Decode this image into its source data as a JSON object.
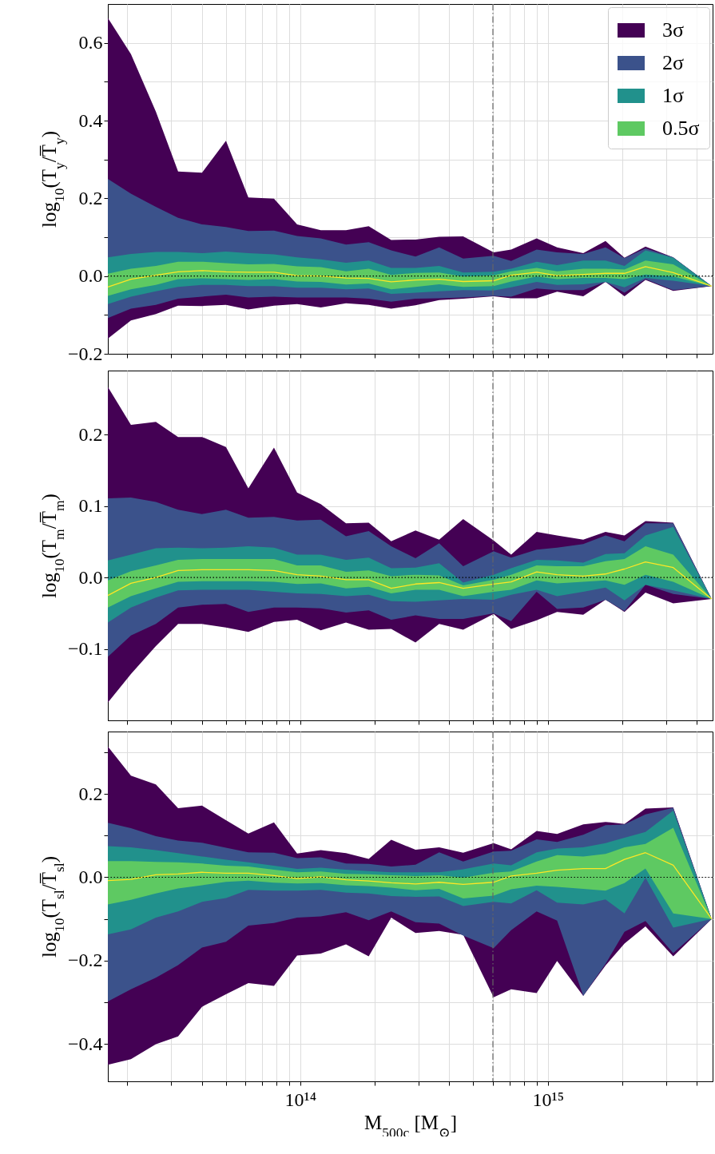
{
  "chart_data": [
    {
      "type": "area",
      "ylabel": "log$_{10}$(T$_{y}$/T̅$_{y}$)",
      "log": "x",
      "grid": true,
      "legend": "top right",
      "tick_labels": "y",
      "xlim": [
        16700000000000.0,
        4630000000000000.0
      ],
      "xticks": [
        {
          "value": 20000000000000.0,
          "label": null
        },
        {
          "value": 30000000000000.0,
          "label": null
        },
        {
          "value": 40000000000000.0,
          "label": null
        },
        {
          "value": 50000000000000.0,
          "label": null
        },
        {
          "value": 60000000000000.0,
          "label": null
        },
        {
          "value": 70000000000000.0,
          "label": null
        },
        {
          "value": 80000000000000.0,
          "label": null
        },
        {
          "value": 90000000000000.0,
          "label": null
        },
        {
          "value": 100000000000000.0,
          "label": null
        },
        {
          "value": 200000000000000.0,
          "label": null
        },
        {
          "value": 300000000000000.0,
          "label": null
        },
        {
          "value": 400000000000000.0,
          "label": null
        },
        {
          "value": 500000000000000.0,
          "label": null
        },
        {
          "value": 600000000000000.0,
          "label": null
        },
        {
          "value": 700000000000000.0,
          "label": null
        },
        {
          "value": 800000000000000.0,
          "label": null
        },
        {
          "value": 900000000000000.0,
          "label": null
        },
        {
          "value": 1000000000000000.0,
          "label": null
        },
        {
          "value": 2000000000000000.0,
          "label": null
        },
        {
          "value": 3000000000000000.0,
          "label": null
        },
        {
          "value": 4000000000000000.0,
          "label": null
        }
      ],
      "ylim": [
        -0.2,
        0.7
      ],
      "yticks": [
        {
          "value": -0.2,
          "label": "−0.2"
        },
        {
          "value": -0.1,
          "label": null
        },
        {
          "value": 0,
          "label": "0.0"
        },
        {
          "value": 0.1,
          "label": null
        },
        0.2,
        {
          "value": 0.3,
          "label": null
        },
        0.4,
        {
          "value": 0.5,
          "label": null
        },
        0.6
      ],
      "x": [
        16700000000000.0,
        20700000000000.0,
        26100000000000.0,
        32100000000000.0,
        40100000000000.0,
        50100000000000.0,
        61700000000000.0,
        78300000000000.0,
        97100000000000.0,
        121000000000000.0,
        153000000000000.0,
        189000000000000.0,
        233000000000000.0,
        292000000000000.0,
        364000000000000.0,
        455000000000000.0,
        604000000000000.0,
        711000000000000.0,
        901000000000000.0,
        1090000000000000.0,
        1390000000000000.0,
        1710000000000000.0,
        2040000000000000.0,
        2480000000000000.0,
        3210000000000000.0,
        4590000000000000.0
      ],
      "series": [
        {
          "name": "3σ",
          "color": "#440154",
          "values": [
            null,
            null,
            null,
            null,
            null,
            null,
            null,
            null,
            null,
            null,
            null,
            null,
            null,
            null,
            null,
            null,
            null,
            null,
            null,
            null,
            null,
            null,
            null,
            null,
            null,
            null
          ],
          "upper": [
            0.664,
            0.571,
            0.423,
            0.269,
            0.266,
            0.348,
            0.202,
            0.199,
            0.133,
            0.118,
            0.118,
            0.128,
            0.093,
            0.094,
            0.101,
            0.102,
            0.061,
            0.068,
            0.097,
            0.074,
            0.059,
            0.09,
            0.047,
            0.076,
            0.048,
            -0.026
          ],
          "lower": [
            -0.161,
            -0.114,
            -0.098,
            -0.076,
            -0.077,
            -0.074,
            -0.086,
            -0.076,
            -0.072,
            -0.081,
            -0.07,
            -0.074,
            -0.084,
            -0.075,
            -0.062,
            -0.058,
            -0.052,
            -0.057,
            -0.057,
            -0.04,
            -0.052,
            -0.015,
            -0.052,
            -0.01,
            -0.038,
            -0.026
          ]
        },
        {
          "name": "2σ",
          "color": "#3b528b",
          "values": [
            null,
            null,
            null,
            null,
            null,
            null,
            null,
            null,
            null,
            null,
            null,
            null,
            null,
            null,
            null,
            null,
            null,
            null,
            null,
            null,
            null,
            null,
            null,
            null,
            null,
            null
          ],
          "upper": [
            0.25,
            0.212,
            0.178,
            0.15,
            0.133,
            0.126,
            0.116,
            0.117,
            0.103,
            0.097,
            0.081,
            0.087,
            0.066,
            0.05,
            0.074,
            0.045,
            0.052,
            0.039,
            0.068,
            0.061,
            0.057,
            0.074,
            0.046,
            0.071,
            0.048,
            -0.026
          ],
          "lower": [
            -0.108,
            -0.084,
            -0.074,
            -0.058,
            -0.053,
            -0.048,
            -0.055,
            -0.053,
            -0.055,
            -0.055,
            -0.055,
            -0.058,
            -0.066,
            -0.058,
            -0.057,
            -0.055,
            -0.051,
            -0.053,
            -0.032,
            -0.036,
            -0.036,
            -0.015,
            -0.043,
            -0.008,
            -0.036,
            -0.026
          ]
        },
        {
          "name": "1σ",
          "color": "#21918c",
          "values": [
            null,
            null,
            null,
            null,
            null,
            null,
            null,
            null,
            null,
            null,
            null,
            null,
            null,
            null,
            null,
            null,
            null,
            null,
            null,
            null,
            null,
            null,
            null,
            null,
            null,
            null
          ],
          "upper": [
            0.048,
            0.057,
            0.062,
            0.062,
            0.059,
            0.063,
            0.059,
            0.056,
            0.048,
            0.043,
            0.034,
            0.04,
            0.021,
            0.021,
            0.026,
            0.009,
            0.011,
            0.019,
            0.037,
            0.028,
            0.04,
            0.04,
            0.026,
            0.066,
            0.047,
            -0.026
          ],
          "lower": [
            -0.072,
            -0.053,
            -0.039,
            -0.028,
            -0.023,
            -0.023,
            -0.026,
            -0.026,
            -0.03,
            -0.03,
            -0.034,
            -0.032,
            -0.046,
            -0.043,
            -0.039,
            -0.036,
            -0.037,
            -0.029,
            -0.015,
            -0.023,
            -0.021,
            -0.015,
            -0.029,
            -0.005,
            -0.012,
            -0.026
          ]
        },
        {
          "name": "0.5σ",
          "color": "#5ec962",
          "values": [
            null,
            null,
            null,
            null,
            null,
            null,
            null,
            null,
            null,
            null,
            null,
            null,
            null,
            null,
            null,
            null,
            null,
            null,
            null,
            null,
            null,
            null,
            null,
            null,
            null,
            null
          ],
          "upper": [
            0.006,
            0.019,
            0.026,
            0.037,
            0.037,
            0.033,
            0.03,
            0.031,
            0.025,
            0.023,
            0.012,
            0.019,
            0.003,
            0.008,
            0.009,
            -0.001,
            0.002,
            0.012,
            0.021,
            0.012,
            0.019,
            0.019,
            0.017,
            0.04,
            0.03,
            -0.026
          ],
          "lower": [
            -0.051,
            -0.034,
            -0.023,
            -0.008,
            -0.006,
            -0.008,
            -0.01,
            -0.008,
            -0.014,
            -0.015,
            -0.022,
            -0.019,
            -0.034,
            -0.028,
            -0.021,
            -0.028,
            -0.026,
            -0.014,
            -0.001,
            -0.008,
            -0.005,
            -0.005,
            -0.008,
            0.004,
            -0.001,
            -0.026
          ]
        },
        {
          "type": "line",
          "color": "#fde725",
          "values": [
            -0.028,
            -0.008,
            0.002,
            0.011,
            0.014,
            0.011,
            0.01,
            0.01,
            0.001,
            0.0,
            -0.005,
            -0.006,
            -0.015,
            -0.01,
            -0.008,
            -0.014,
            -0.012,
            0.002,
            0.01,
            0.001,
            0.004,
            0.007,
            0.007,
            0.024,
            0.009,
            -0.026
          ]
        }
      ],
      "ref_lines": [
        {
          "axis": "y",
          "value": 0,
          "color": "#000000",
          "line_style": "dotted"
        },
        {
          "axis": "x",
          "value": 600000000000000.0,
          "color": "#666666",
          "line_style": "dashdot"
        }
      ]
    },
    {
      "type": "area",
      "ylabel": "log$_{10}$(T$_{m}$/T̅$_{m}$)",
      "log": "x",
      "grid": true,
      "tick_labels": "y",
      "xlim": [
        16700000000000.0,
        4630000000000000.0
      ],
      "xticks": [
        {
          "value": 20000000000000.0,
          "label": null
        },
        {
          "value": 30000000000000.0,
          "label": null
        },
        {
          "value": 40000000000000.0,
          "label": null
        },
        {
          "value": 50000000000000.0,
          "label": null
        },
        {
          "value": 60000000000000.0,
          "label": null
        },
        {
          "value": 70000000000000.0,
          "label": null
        },
        {
          "value": 80000000000000.0,
          "label": null
        },
        {
          "value": 90000000000000.0,
          "label": null
        },
        {
          "value": 100000000000000.0,
          "label": null
        },
        {
          "value": 200000000000000.0,
          "label": null
        },
        {
          "value": 300000000000000.0,
          "label": null
        },
        {
          "value": 400000000000000.0,
          "label": null
        },
        {
          "value": 500000000000000.0,
          "label": null
        },
        {
          "value": 600000000000000.0,
          "label": null
        },
        {
          "value": 700000000000000.0,
          "label": null
        },
        {
          "value": 800000000000000.0,
          "label": null
        },
        {
          "value": 900000000000000.0,
          "label": null
        },
        {
          "value": 1000000000000000.0,
          "label": null
        },
        {
          "value": 2000000000000000.0,
          "label": null
        },
        {
          "value": 3000000000000000.0,
          "label": null
        },
        {
          "value": 4000000000000000.0,
          "label": null
        }
      ],
      "ylim": [
        -0.2,
        0.29
      ],
      "yticks": [
        {
          "value": -0.1,
          "label": "−0.1"
        },
        {
          "value": 0,
          "label": "0.0"
        },
        0.1,
        0.2
      ],
      "x": [
        16700000000000.0,
        20700000000000.0,
        26100000000000.0,
        32100000000000.0,
        40100000000000.0,
        50100000000000.0,
        61700000000000.0,
        78300000000000.0,
        97100000000000.0,
        121000000000000.0,
        153000000000000.0,
        189000000000000.0,
        233000000000000.0,
        292000000000000.0,
        364000000000000.0,
        455000000000000.0,
        604000000000000.0,
        711000000000000.0,
        901000000000000.0,
        1090000000000000.0,
        1390000000000000.0,
        1710000000000000.0,
        2040000000000000.0,
        2480000000000000.0,
        3210000000000000.0,
        4590000000000000.0
      ],
      "series": [
        {
          "color": "#440154",
          "values": [
            null,
            null,
            null,
            null,
            null,
            null,
            null,
            null,
            null,
            null,
            null,
            null,
            null,
            null,
            null,
            null,
            null,
            null,
            null,
            null,
            null,
            null,
            null,
            null,
            null,
            null
          ],
          "upper": [
            0.267,
            0.214,
            0.218,
            0.197,
            0.197,
            0.183,
            0.125,
            0.182,
            0.119,
            0.103,
            0.076,
            0.077,
            0.051,
            0.066,
            0.053,
            0.082,
            0.052,
            0.032,
            0.064,
            0.059,
            0.053,
            0.064,
            0.059,
            0.079,
            0.077,
            -0.03
          ],
          "lower": [
            -0.175,
            -0.135,
            -0.096,
            -0.065,
            -0.065,
            -0.07,
            -0.076,
            -0.062,
            -0.059,
            -0.074,
            -0.063,
            -0.073,
            -0.072,
            -0.091,
            -0.065,
            -0.073,
            -0.051,
            -0.072,
            -0.06,
            -0.048,
            -0.052,
            -0.031,
            -0.048,
            -0.021,
            -0.036,
            -0.03
          ]
        },
        {
          "color": "#3b528b",
          "values": [
            null,
            null,
            null,
            null,
            null,
            null,
            null,
            null,
            null,
            null,
            null,
            null,
            null,
            null,
            null,
            null,
            null,
            null,
            null,
            null,
            null,
            null,
            null,
            null,
            null,
            null
          ],
          "upper": [
            0.111,
            0.112,
            0.106,
            0.095,
            0.089,
            0.095,
            0.084,
            0.085,
            0.08,
            0.081,
            0.058,
            0.065,
            0.044,
            0.027,
            0.048,
            0.016,
            0.037,
            0.028,
            0.039,
            0.042,
            0.047,
            0.059,
            0.051,
            0.076,
            0.076,
            -0.03
          ],
          "lower": [
            -0.111,
            -0.081,
            -0.065,
            -0.042,
            -0.038,
            -0.037,
            -0.048,
            -0.042,
            -0.042,
            -0.043,
            -0.049,
            -0.046,
            -0.059,
            -0.053,
            -0.058,
            -0.058,
            -0.05,
            -0.061,
            -0.02,
            -0.044,
            -0.042,
            -0.031,
            -0.047,
            -0.01,
            -0.023,
            -0.03
          ]
        },
        {
          "color": "#21918c",
          "values": [
            null,
            null,
            null,
            null,
            null,
            null,
            null,
            null,
            null,
            null,
            null,
            null,
            null,
            null,
            null,
            null,
            null,
            null,
            null,
            null,
            null,
            null,
            null,
            null,
            null,
            null
          ],
          "upper": [
            0.024,
            0.032,
            0.041,
            0.042,
            0.041,
            0.042,
            0.044,
            0.042,
            0.032,
            0.032,
            0.025,
            0.028,
            0.013,
            0.014,
            0.02,
            -0.007,
            0.004,
            0.013,
            0.025,
            0.024,
            0.021,
            0.033,
            0.034,
            0.059,
            0.071,
            -0.03
          ],
          "lower": [
            -0.063,
            -0.042,
            -0.028,
            -0.018,
            -0.017,
            -0.017,
            -0.017,
            -0.02,
            -0.022,
            -0.023,
            -0.026,
            -0.024,
            -0.033,
            -0.034,
            -0.032,
            -0.03,
            -0.031,
            -0.024,
            -0.017,
            -0.026,
            -0.02,
            -0.014,
            -0.032,
            -0.01,
            -0.018,
            -0.03
          ]
        },
        {
          "color": "#5ec962",
          "values": [
            null,
            null,
            null,
            null,
            null,
            null,
            null,
            null,
            null,
            null,
            null,
            null,
            null,
            null,
            null,
            null,
            null,
            null,
            null,
            null,
            null,
            null,
            null,
            null,
            null,
            null
          ],
          "upper": [
            -0.004,
            0.009,
            0.017,
            0.025,
            0.026,
            0.026,
            0.026,
            0.026,
            0.017,
            0.017,
            0.008,
            0.01,
            0.002,
            0.004,
            0.003,
            -0.011,
            -0.003,
            0.004,
            0.017,
            0.016,
            0.016,
            0.023,
            0.026,
            0.044,
            0.032,
            -0.03
          ],
          "lower": [
            -0.042,
            -0.026,
            -0.015,
            -0.006,
            -0.005,
            -0.005,
            -0.005,
            -0.006,
            -0.009,
            -0.008,
            -0.015,
            -0.013,
            -0.022,
            -0.017,
            -0.017,
            -0.026,
            -0.02,
            -0.017,
            -0.004,
            -0.008,
            -0.006,
            -0.004,
            -0.01,
            0.004,
            -0.006,
            -0.03
          ]
        },
        {
          "type": "line",
          "color": "#fde725",
          "values": [
            -0.025,
            -0.008,
            0.0,
            0.01,
            0.011,
            0.011,
            0.011,
            0.01,
            0.004,
            0.002,
            -0.003,
            -0.003,
            -0.015,
            -0.009,
            -0.007,
            -0.015,
            -0.009,
            -0.006,
            0.008,
            0.004,
            0.002,
            0.005,
            0.012,
            0.022,
            0.014,
            -0.03
          ]
        }
      ],
      "ref_lines": [
        {
          "axis": "y",
          "value": 0,
          "color": "#000000",
          "line_style": "dotted"
        },
        {
          "axis": "x",
          "value": 600000000000000.0,
          "color": "#666666",
          "line_style": "dashdot"
        }
      ]
    },
    {
      "type": "area",
      "xlabel": "M$_{500c}$ [M$_{⊙}$]",
      "ylabel": "log$_{10}$(T$_{sl}$/T̅$_{sl}$)",
      "log": "x",
      "grid": true,
      "xlim": [
        16700000000000.0,
        4630000000000000.0
      ],
      "xticks": [
        {
          "value": 20000000000000.0,
          "label": null
        },
        {
          "value": 30000000000000.0,
          "label": null
        },
        {
          "value": 40000000000000.0,
          "label": null
        },
        {
          "value": 50000000000000.0,
          "label": null
        },
        {
          "value": 60000000000000.0,
          "label": null
        },
        {
          "value": 70000000000000.0,
          "label": null
        },
        {
          "value": 80000000000000.0,
          "label": null
        },
        {
          "value": 90000000000000.0,
          "label": null
        },
        {
          "value": 100000000000000.0,
          "label": "10¹⁴"
        },
        {
          "value": 200000000000000.0,
          "label": null
        },
        {
          "value": 300000000000000.0,
          "label": null
        },
        {
          "value": 400000000000000.0,
          "label": null
        },
        {
          "value": 500000000000000.0,
          "label": null
        },
        {
          "value": 600000000000000.0,
          "label": null
        },
        {
          "value": 700000000000000.0,
          "label": null
        },
        {
          "value": 800000000000000.0,
          "label": null
        },
        {
          "value": 900000000000000.0,
          "label": null
        },
        {
          "value": 1000000000000000.0,
          "label": "10¹⁵"
        },
        {
          "value": 2000000000000000.0,
          "label": null
        },
        {
          "value": 3000000000000000.0,
          "label": null
        },
        {
          "value": 4000000000000000.0,
          "label": null
        }
      ],
      "ylim": [
        -0.49,
        0.35
      ],
      "yticks": [
        {
          "value": -0.4,
          "label": "−0.4"
        },
        {
          "value": -0.3,
          "label": null
        },
        {
          "value": -0.2,
          "label": "−0.2"
        },
        {
          "value": -0.1,
          "label": null
        },
        {
          "value": 0,
          "label": "0.0"
        },
        {
          "value": 0.1,
          "label": null
        },
        0.2,
        {
          "value": 0.3,
          "label": null
        }
      ],
      "x": [
        16700000000000.0,
        20700000000000.0,
        26100000000000.0,
        32100000000000.0,
        40100000000000.0,
        50100000000000.0,
        61700000000000.0,
        78300000000000.0,
        97100000000000.0,
        121000000000000.0,
        153000000000000.0,
        189000000000000.0,
        233000000000000.0,
        292000000000000.0,
        364000000000000.0,
        455000000000000.0,
        604000000000000.0,
        711000000000000.0,
        901000000000000.0,
        1090000000000000.0,
        1390000000000000.0,
        1710000000000000.0,
        2040000000000000.0,
        2480000000000000.0,
        3210000000000000.0,
        4590000000000000.0
      ],
      "series": [
        {
          "color": "#440154",
          "values": [
            null,
            null,
            null,
            null,
            null,
            null,
            null,
            null,
            null,
            null,
            null,
            null,
            null,
            null,
            null,
            null,
            null,
            null,
            null,
            null,
            null,
            null,
            null,
            null,
            null,
            null
          ],
          "upper": [
            0.314,
            0.244,
            0.223,
            0.166,
            0.172,
            0.137,
            0.105,
            0.132,
            0.057,
            0.065,
            0.058,
            0.044,
            0.09,
            0.066,
            0.072,
            0.059,
            0.082,
            0.067,
            0.111,
            0.104,
            0.127,
            0.133,
            0.128,
            0.165,
            0.168,
            -0.1
          ],
          "lower": [
            -0.45,
            -0.437,
            -0.401,
            -0.382,
            -0.311,
            -0.281,
            -0.254,
            -0.261,
            -0.188,
            -0.183,
            -0.161,
            -0.19,
            -0.097,
            -0.134,
            -0.129,
            -0.138,
            -0.288,
            -0.269,
            -0.278,
            -0.201,
            -0.285,
            -0.212,
            -0.159,
            -0.118,
            -0.19,
            -0.1
          ]
        },
        {
          "color": "#3b528b",
          "values": [
            null,
            null,
            null,
            null,
            null,
            null,
            null,
            null,
            null,
            null,
            null,
            null,
            null,
            null,
            null,
            null,
            null,
            null,
            null,
            null,
            null,
            null,
            null,
            null,
            null,
            null
          ],
          "upper": [
            0.131,
            0.118,
            0.099,
            0.088,
            0.083,
            0.071,
            0.06,
            0.059,
            0.046,
            0.048,
            0.033,
            0.032,
            0.026,
            0.03,
            0.06,
            0.038,
            0.062,
            0.064,
            0.091,
            0.085,
            0.102,
            0.125,
            0.127,
            0.151,
            0.167,
            -0.1
          ],
          "lower": [
            -0.298,
            -0.269,
            -0.241,
            -0.211,
            -0.169,
            -0.155,
            -0.116,
            -0.11,
            -0.097,
            -0.094,
            -0.084,
            -0.103,
            -0.082,
            -0.108,
            -0.111,
            -0.14,
            -0.17,
            -0.127,
            -0.082,
            -0.104,
            -0.285,
            -0.208,
            -0.131,
            -0.105,
            -0.182,
            -0.1
          ]
        },
        {
          "color": "#21918c",
          "values": [
            null,
            null,
            null,
            null,
            null,
            null,
            null,
            null,
            null,
            null,
            null,
            null,
            null,
            null,
            null,
            null,
            null,
            null,
            null,
            null,
            null,
            null,
            null,
            null,
            null,
            null
          ],
          "upper": [
            0.075,
            0.072,
            0.065,
            0.058,
            0.05,
            0.042,
            0.036,
            0.028,
            0.02,
            0.023,
            0.018,
            0.015,
            0.012,
            0.012,
            0.012,
            0.019,
            0.033,
            0.029,
            0.06,
            0.069,
            0.072,
            0.082,
            0.095,
            0.109,
            0.16,
            -0.1
          ],
          "lower": [
            -0.137,
            -0.125,
            -0.097,
            -0.082,
            -0.059,
            -0.05,
            -0.03,
            -0.032,
            -0.032,
            -0.03,
            -0.037,
            -0.039,
            -0.045,
            -0.047,
            -0.046,
            -0.069,
            -0.059,
            -0.063,
            -0.031,
            -0.061,
            -0.065,
            -0.053,
            -0.087,
            -0.001,
            -0.121,
            -0.1
          ]
        },
        {
          "color": "#5ec962",
          "values": [
            null,
            null,
            null,
            null,
            null,
            null,
            null,
            null,
            null,
            null,
            null,
            null,
            null,
            null,
            null,
            null,
            null,
            null,
            null,
            null,
            null,
            null,
            null,
            null,
            null,
            null
          ],
          "upper": [
            0.039,
            0.039,
            0.037,
            0.036,
            0.033,
            0.028,
            0.026,
            0.018,
            0.012,
            0.014,
            0.008,
            0.007,
            0.005,
            0.003,
            0.005,
            -0.001,
            0.011,
            0.014,
            0.038,
            0.053,
            0.05,
            0.056,
            0.072,
            0.08,
            0.119,
            -0.1
          ],
          "lower": [
            -0.065,
            -0.054,
            -0.039,
            -0.027,
            -0.019,
            -0.011,
            -0.008,
            -0.013,
            -0.015,
            -0.014,
            -0.019,
            -0.021,
            -0.025,
            -0.031,
            -0.028,
            -0.051,
            -0.044,
            -0.029,
            -0.02,
            -0.023,
            -0.028,
            -0.032,
            -0.014,
            0.021,
            -0.087,
            -0.1
          ]
        },
        {
          "type": "line",
          "color": "#fde725",
          "values": [
            -0.008,
            -0.005,
            0.006,
            0.008,
            0.012,
            0.01,
            0.01,
            0.004,
            -0.003,
            0.001,
            -0.006,
            -0.009,
            -0.013,
            -0.016,
            -0.012,
            -0.017,
            -0.012,
            0.003,
            0.01,
            0.017,
            0.021,
            0.021,
            0.043,
            0.059,
            0.029,
            -0.1
          ]
        }
      ],
      "ref_lines": [
        {
          "axis": "y",
          "value": 0,
          "color": "#000000",
          "line_style": "dotted"
        },
        {
          "axis": "x",
          "value": 600000000000000.0,
          "color": "#666666",
          "line_style": "dashdot"
        }
      ]
    }
  ]
}
